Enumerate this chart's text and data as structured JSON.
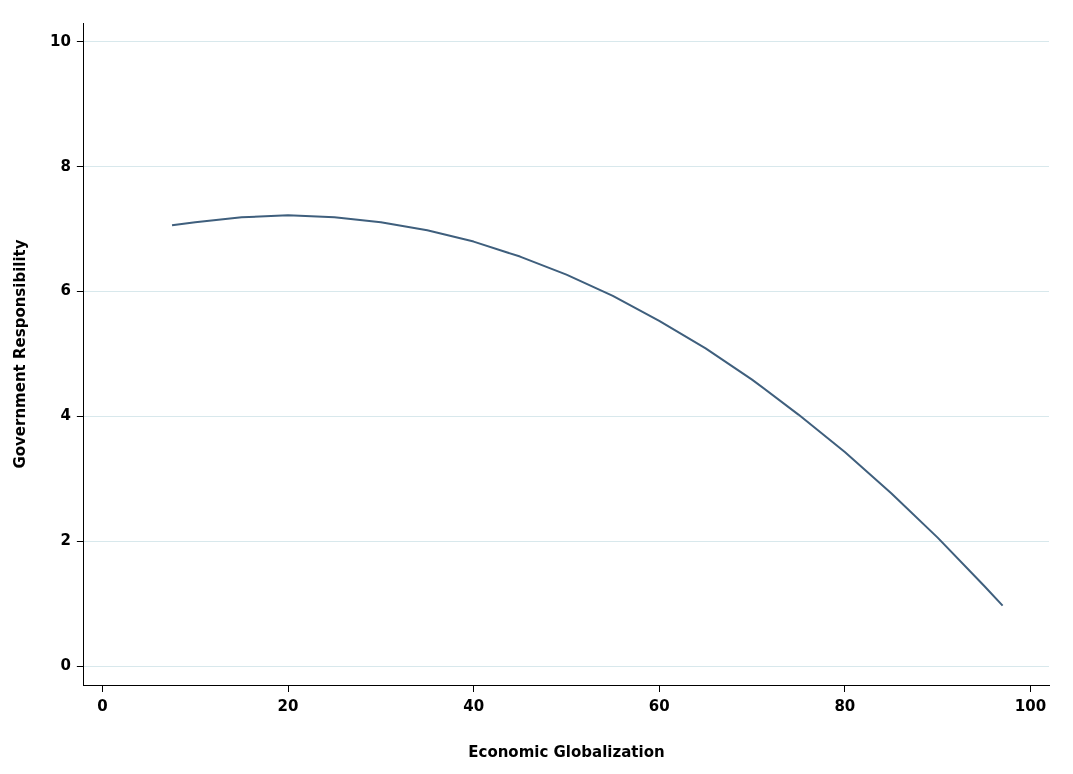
{
  "chart_data": {
    "type": "line",
    "xlabel": "Economic Globalization",
    "ylabel": "Government Responsibility",
    "x": [
      7.5,
      10,
      15,
      20,
      25,
      30,
      35,
      40,
      45,
      50,
      55,
      60,
      65,
      70,
      75,
      80,
      85,
      90,
      95,
      97
    ],
    "series": [
      {
        "color": "#3f5f7d",
        "values": [
          7.06,
          7.11,
          7.19,
          7.22,
          7.19,
          7.11,
          6.98,
          6.8,
          6.56,
          6.27,
          5.93,
          5.53,
          5.09,
          4.59,
          4.03,
          3.43,
          2.77,
          2.06,
          1.29,
          0.97
        ]
      }
    ],
    "xlim": [
      -2,
      102
    ],
    "ylim": [
      -0.3,
      10.3
    ],
    "xticks": [
      0,
      20,
      40,
      60,
      80,
      100
    ],
    "yticks": [
      0,
      2,
      4,
      6,
      8,
      10
    ],
    "grid": "y",
    "legend": false,
    "marker": "none",
    "line_style": "solid"
  }
}
